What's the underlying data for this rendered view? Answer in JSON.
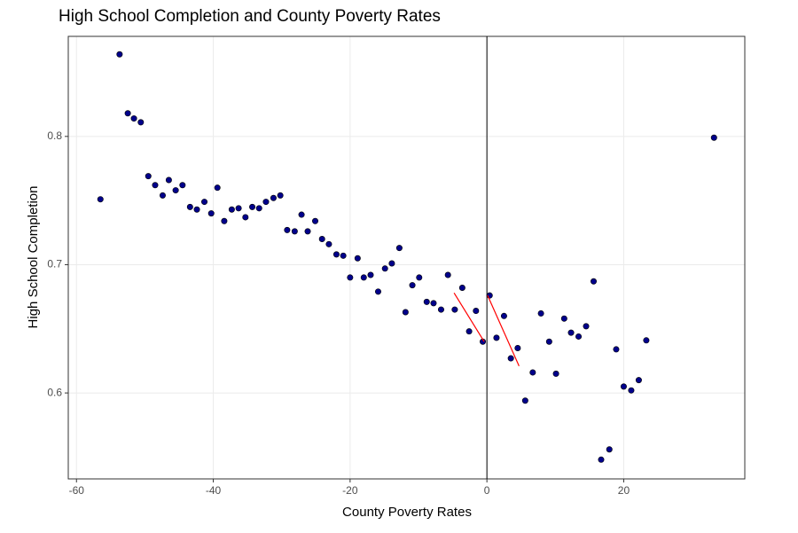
{
  "chart_data": {
    "type": "scatter",
    "title": "High School Completion and County Poverty Rates",
    "x_label": "County Poverty Rates",
    "y_label": "High School Completion",
    "color": "#00008b",
    "grid": true,
    "vline": 0,
    "xlim": [
      -61.2,
      37.7
    ],
    "ylim": [
      0.533,
      0.878
    ],
    "xticks": [
      -60,
      -40,
      -20,
      0,
      20
    ],
    "yticks": [
      0.6,
      0.7,
      0.8
    ],
    "x": [
      -56.5,
      -53.7,
      -52.5,
      -51.6,
      -50.6,
      -49.5,
      -48.5,
      -47.4,
      -46.5,
      -45.5,
      -44.5,
      -43.4,
      -42.4,
      -41.3,
      -40.3,
      -39.4,
      -38.4,
      -37.3,
      -36.3,
      -35.3,
      -34.3,
      -33.3,
      -32.3,
      -31.2,
      -30.2,
      -29.2,
      -28.1,
      -27.1,
      -26.2,
      -25.1,
      -24.1,
      -23.1,
      -22.0,
      -21.0,
      -20.0,
      -18.9,
      -18.0,
      -17.0,
      -15.9,
      -14.9,
      -13.9,
      -12.8,
      -11.9,
      -10.9,
      -9.9,
      -8.8,
      -7.8,
      -6.7,
      -5.7,
      -4.7,
      -3.6,
      -2.6,
      -1.6,
      -0.6,
      0.4,
      1.4,
      2.5,
      3.5,
      4.5,
      5.6,
      6.7,
      7.9,
      9.1,
      10.1,
      11.3,
      12.3,
      13.4,
      14.5,
      15.6,
      16.7,
      17.9,
      18.9,
      20.0,
      21.1,
      22.2,
      23.3,
      33.2
    ],
    "values": [
      0.751,
      0.864,
      0.818,
      0.814,
      0.811,
      0.769,
      0.762,
      0.754,
      0.766,
      0.758,
      0.762,
      0.745,
      0.743,
      0.749,
      0.74,
      0.76,
      0.734,
      0.743,
      0.744,
      0.737,
      0.745,
      0.744,
      0.749,
      0.752,
      0.754,
      0.727,
      0.726,
      0.739,
      0.726,
      0.734,
      0.72,
      0.716,
      0.708,
      0.707,
      0.69,
      0.705,
      0.69,
      0.692,
      0.679,
      0.697,
      0.701,
      0.713,
      0.663,
      0.684,
      0.69,
      0.671,
      0.67,
      0.665,
      0.692,
      0.665,
      0.682,
      0.648,
      0.664,
      0.64,
      0.676,
      0.643,
      0.66,
      0.627,
      0.635,
      0.594,
      0.616,
      0.662,
      0.64,
      0.615,
      0.658,
      0.647,
      0.644,
      0.652,
      0.687,
      0.548,
      0.556,
      0.634,
      0.605,
      0.602,
      0.61,
      0.641,
      0.799
    ],
    "fit_lines": [
      {
        "color": "#ff0000",
        "x": [
          -4.8,
          -0.4
        ],
        "y": [
          0.678,
          0.64
        ]
      },
      {
        "color": "#ff0000",
        "x": [
          0.1,
          4.7
        ],
        "y": [
          0.676,
          0.621
        ]
      }
    ]
  }
}
